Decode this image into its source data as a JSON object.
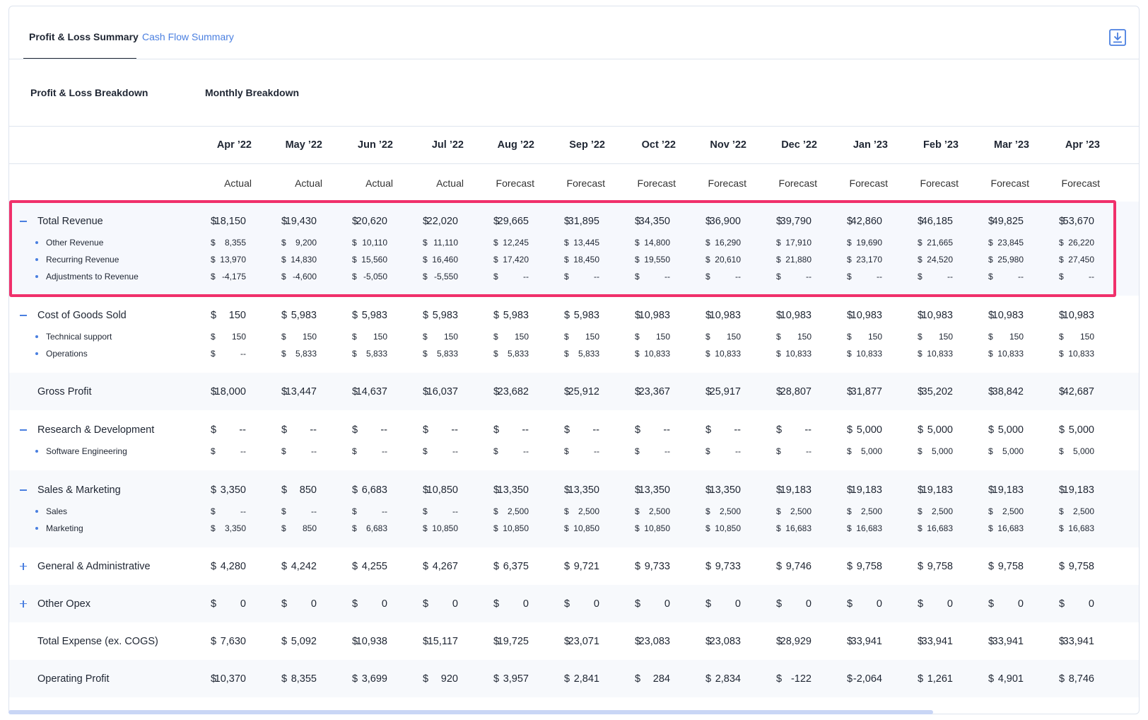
{
  "tabs": [
    "Profit & Loss Summary",
    "Cash Flow Summary"
  ],
  "section_titles": [
    "Profit & Loss Breakdown",
    "Monthly Breakdown"
  ],
  "currency_symbol": "$",
  "columns": [
    {
      "month": "Apr ’22",
      "kind": "Actual"
    },
    {
      "month": "May ’22",
      "kind": "Actual"
    },
    {
      "month": "Jun ’22",
      "kind": "Actual"
    },
    {
      "month": "Jul ’22",
      "kind": "Actual"
    },
    {
      "month": "Aug ’22",
      "kind": "Forecast"
    },
    {
      "month": "Sep ’22",
      "kind": "Forecast"
    },
    {
      "month": "Oct ’22",
      "kind": "Forecast"
    },
    {
      "month": "Nov ’22",
      "kind": "Forecast"
    },
    {
      "month": "Dec ’22",
      "kind": "Forecast"
    },
    {
      "month": "Jan ’23",
      "kind": "Forecast"
    },
    {
      "month": "Feb ’23",
      "kind": "Forecast"
    },
    {
      "month": "Mar ’23",
      "kind": "Forecast"
    },
    {
      "month": "Apr ’23",
      "kind": "Forecast"
    }
  ],
  "groups": [
    {
      "label": "Total Revenue",
      "expanded": true,
      "highlighted": true,
      "values": [
        "18,150",
        "19,430",
        "20,620",
        "22,020",
        "29,665",
        "31,895",
        "34,350",
        "36,900",
        "39,790",
        "42,860",
        "46,185",
        "49,825",
        "53,670"
      ],
      "items": [
        {
          "label": "Other Revenue",
          "values": [
            "8,355",
            "9,200",
            "10,110",
            "11,110",
            "12,245",
            "13,445",
            "14,800",
            "16,290",
            "17,910",
            "19,690",
            "21,665",
            "23,845",
            "26,220"
          ]
        },
        {
          "label": "Recurring Revenue",
          "values": [
            "13,970",
            "14,830",
            "15,560",
            "16,460",
            "17,420",
            "18,450",
            "19,550",
            "20,610",
            "21,880",
            "23,170",
            "24,520",
            "25,980",
            "27,450"
          ]
        },
        {
          "label": "Adjustments to Revenue",
          "values": [
            "-4,175",
            "-4,600",
            "-5,050",
            "-5,550",
            "--",
            "--",
            "--",
            "--",
            "--",
            "--",
            "--",
            "--",
            "--"
          ]
        }
      ]
    },
    {
      "label": "Cost of Goods Sold",
      "expanded": true,
      "values": [
        "150",
        "5,983",
        "5,983",
        "5,983",
        "5,983",
        "5,983",
        "10,983",
        "10,983",
        "10,983",
        "10,983",
        "10,983",
        "10,983",
        "10,983"
      ],
      "items": [
        {
          "label": "Technical support",
          "values": [
            "150",
            "150",
            "150",
            "150",
            "150",
            "150",
            "150",
            "150",
            "150",
            "150",
            "150",
            "150",
            "150"
          ]
        },
        {
          "label": "Operations",
          "values": [
            "--",
            "5,833",
            "5,833",
            "5,833",
            "5,833",
            "5,833",
            "10,833",
            "10,833",
            "10,833",
            "10,833",
            "10,833",
            "10,833",
            "10,833"
          ]
        }
      ]
    },
    {
      "label": "Gross Profit",
      "values": [
        "18,000",
        "13,447",
        "14,637",
        "16,037",
        "23,682",
        "25,912",
        "23,367",
        "25,917",
        "28,807",
        "31,877",
        "35,202",
        "38,842",
        "42,687"
      ]
    },
    {
      "label": "Research & Development",
      "expanded": true,
      "values": [
        "--",
        "--",
        "--",
        "--",
        "--",
        "--",
        "--",
        "--",
        "--",
        "5,000",
        "5,000",
        "5,000",
        "5,000"
      ],
      "items": [
        {
          "label": "Software Engineering",
          "values": [
            "--",
            "--",
            "--",
            "--",
            "--",
            "--",
            "--",
            "--",
            "--",
            "5,000",
            "5,000",
            "5,000",
            "5,000"
          ]
        }
      ]
    },
    {
      "label": "Sales & Marketing",
      "expanded": true,
      "values": [
        "3,350",
        "850",
        "6,683",
        "10,850",
        "13,350",
        "13,350",
        "13,350",
        "13,350",
        "19,183",
        "19,183",
        "19,183",
        "19,183",
        "19,183"
      ],
      "items": [
        {
          "label": "Sales",
          "values": [
            "--",
            "--",
            "--",
            "--",
            "2,500",
            "2,500",
            "2,500",
            "2,500",
            "2,500",
            "2,500",
            "2,500",
            "2,500",
            "2,500"
          ]
        },
        {
          "label": "Marketing",
          "values": [
            "3,350",
            "850",
            "6,683",
            "10,850",
            "10,850",
            "10,850",
            "10,850",
            "10,850",
            "16,683",
            "16,683",
            "16,683",
            "16,683",
            "16,683"
          ]
        }
      ]
    },
    {
      "label": "General & Administrative",
      "expanded": false,
      "values": [
        "4,280",
        "4,242",
        "4,255",
        "4,267",
        "6,375",
        "9,721",
        "9,733",
        "9,733",
        "9,746",
        "9,758",
        "9,758",
        "9,758",
        "9,758"
      ]
    },
    {
      "label": "Other Opex",
      "expanded": false,
      "values": [
        "0",
        "0",
        "0",
        "0",
        "0",
        "0",
        "0",
        "0",
        "0",
        "0",
        "0",
        "0",
        "0"
      ]
    },
    {
      "label": "Total Expense (ex. COGS)",
      "values": [
        "7,630",
        "5,092",
        "10,938",
        "15,117",
        "19,725",
        "23,071",
        "23,083",
        "23,083",
        "28,929",
        "33,941",
        "33,941",
        "33,941",
        "33,941"
      ]
    },
    {
      "label": "Operating Profit",
      "values": [
        "10,370",
        "8,355",
        "3,699",
        "920",
        "3,957",
        "2,841",
        "284",
        "2,834",
        "-122",
        "-2,064",
        "1,261",
        "4,901",
        "8,746"
      ]
    }
  ]
}
